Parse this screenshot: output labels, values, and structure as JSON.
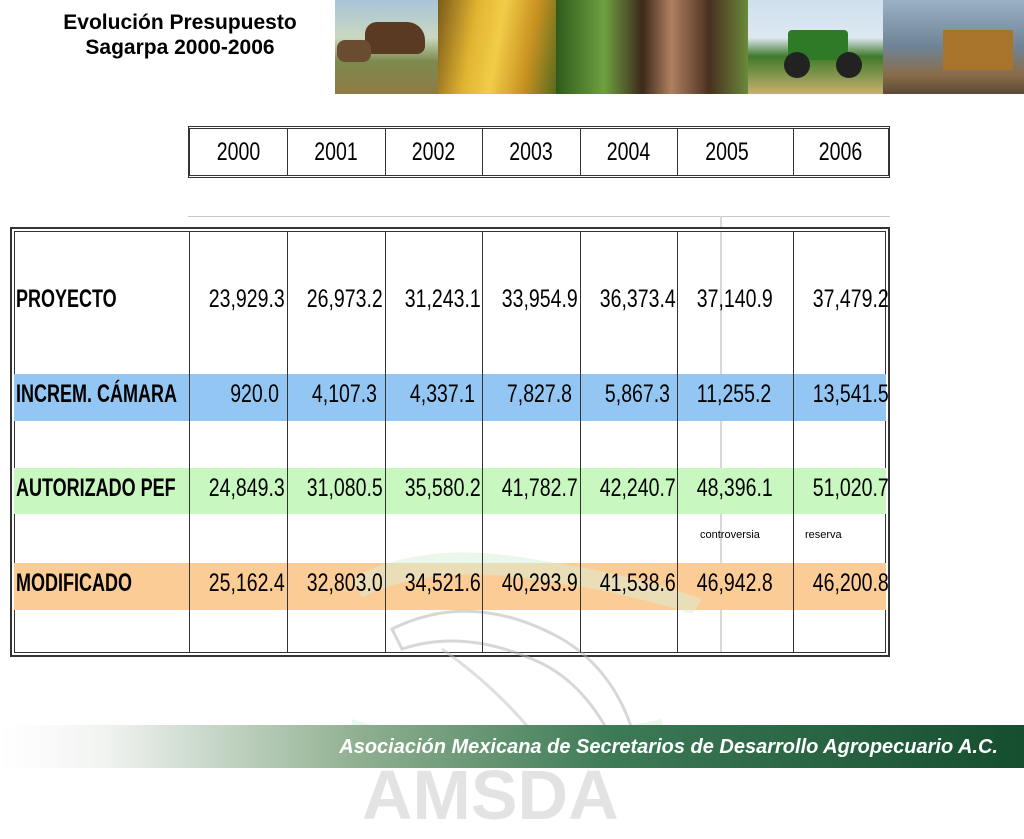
{
  "title": {
    "line1": "Evolución Presupuesto",
    "line2": "Sagarpa 2000-2006"
  },
  "photos": [
    "cattle-photo",
    "corn-photo",
    "farmer-photo",
    "tractor-photo",
    "truck-photo"
  ],
  "years": [
    "2000",
    "2001",
    "2002",
    "2003",
    "2004",
    "2005",
    "2006"
  ],
  "rows": [
    {
      "label": "PROYECTO",
      "color": "#ffffff",
      "values": [
        "23,929.3",
        "26,973.2",
        "31,243.1",
        "33,954.9",
        "36,373.4",
        "37,140.9",
        "37,479.2"
      ]
    },
    {
      "label": "INCREM. CÁMARA",
      "color": "#94c6f4",
      "values": [
        "920.0",
        "4,107.3",
        "4,337.1",
        "7,827.8",
        "5,867.3",
        "11,255.2",
        "13,541.5"
      ]
    },
    {
      "label": "AUTORIZADO PEF",
      "color": "#c8f8c0",
      "values": [
        "24,849.3",
        "31,080.5",
        "35,580.2",
        "41,782.7",
        "42,240.7",
        "48,396.1",
        "51,020.7"
      ]
    },
    {
      "label": "MODIFICADO",
      "color": "#fccc96",
      "values": [
        "25,162.4",
        "32,803.0",
        "34,521.6",
        "40,293.9",
        "41,538.6",
        "46,942.8",
        "46,200.8"
      ]
    }
  ],
  "notes": {
    "controversia": "controversia",
    "reserva": "reserva"
  },
  "footer": "Asociación Mexicana de Secretarios de Desarrollo Agropecuario A.C."
}
